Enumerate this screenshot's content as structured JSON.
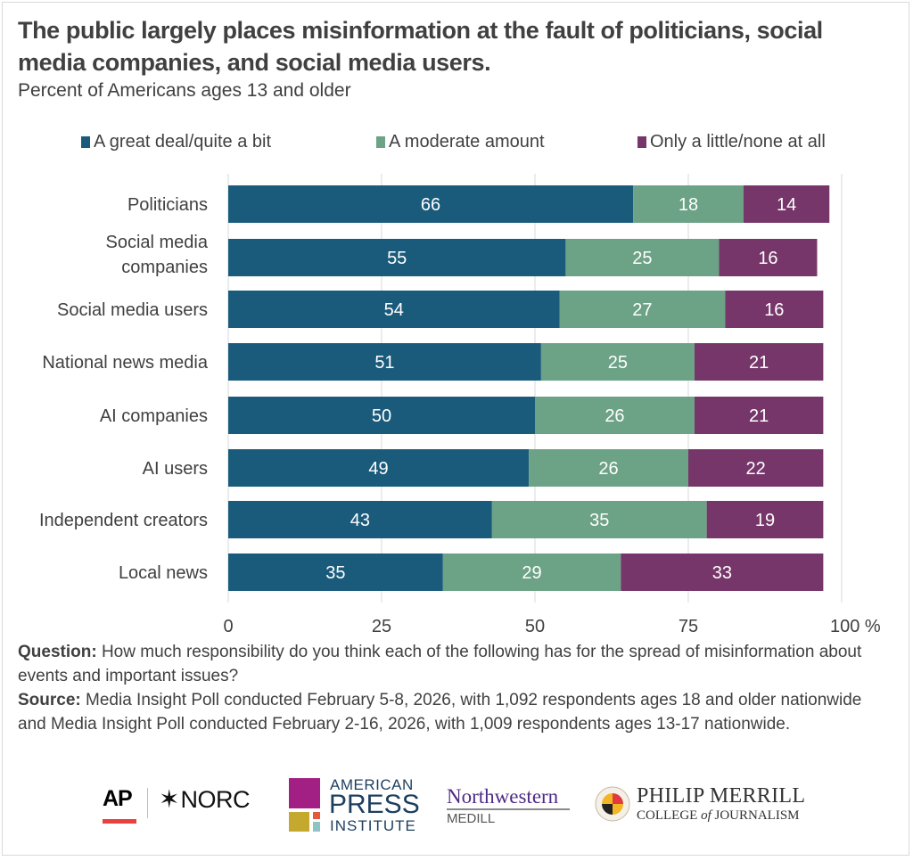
{
  "header": {
    "title": "The public largely places misinformation at the fault of politicians, social media companies, and social media users.",
    "subtitle": "Percent of Americans ages 13 and older"
  },
  "chart_data": {
    "type": "bar",
    "orientation": "horizontal",
    "stacked": true,
    "title": "The public largely places misinformation at the fault of politicians, social media companies, and social media users.",
    "subtitle": "Percent of Americans ages 13 and older",
    "xlabel": "",
    "ylabel": "",
    "xlim": [
      0,
      100
    ],
    "x_ticks": [
      "0",
      "25",
      "50",
      "75",
      "100 %"
    ],
    "x_tick_values": [
      0,
      25,
      50,
      75,
      100
    ],
    "grid": true,
    "legend_position": "top",
    "categories": [
      "Politicians",
      "Social media companies",
      "Social media users",
      "National news media",
      "AI companies",
      "AI users",
      "Independent creators",
      "Local news"
    ],
    "category_lines": [
      [
        "Politicians"
      ],
      [
        "Social media",
        "companies"
      ],
      [
        "Social media users"
      ],
      [
        "National news media"
      ],
      [
        "AI companies"
      ],
      [
        "AI users"
      ],
      [
        "Independent creators"
      ],
      [
        "Local news"
      ]
    ],
    "series": [
      {
        "name": "A great deal/quite a bit",
        "color": "#1a5b7c",
        "values": [
          66,
          55,
          54,
          51,
          50,
          49,
          43,
          35
        ]
      },
      {
        "name": "A moderate amount",
        "color": "#6ca286",
        "values": [
          18,
          25,
          27,
          25,
          26,
          26,
          35,
          29
        ]
      },
      {
        "name": "Only a little/none at all",
        "color": "#76366a",
        "values": [
          14,
          16,
          16,
          21,
          21,
          22,
          19,
          33
        ]
      }
    ]
  },
  "notes": {
    "question_label": "Question:",
    "question_text": " How much responsibility do you think each of the following has for the spread of misinformation about events and important issues?",
    "source_label": "Source:",
    "source_text": " Media Insight Poll conducted February 5-8, 2026, with 1,092 respondents ages 18 and older nationwide and Media Insight Poll conducted February 2-16, 2026, with 1,009 respondents ages 13-17 nationwide."
  },
  "logos": {
    "ap": "AP",
    "norc": "NORC",
    "api_line1": "AMERICAN",
    "api_line2": "PRESS",
    "api_line3": "INSTITUTE",
    "northwestern": "Northwestern",
    "medill": "MEDILL",
    "merrill_line1": "PHILIP MERRILL",
    "merrill_line2a": "COLLEGE ",
    "merrill_of": "of",
    "merrill_line2b": " JOURNALISM"
  }
}
